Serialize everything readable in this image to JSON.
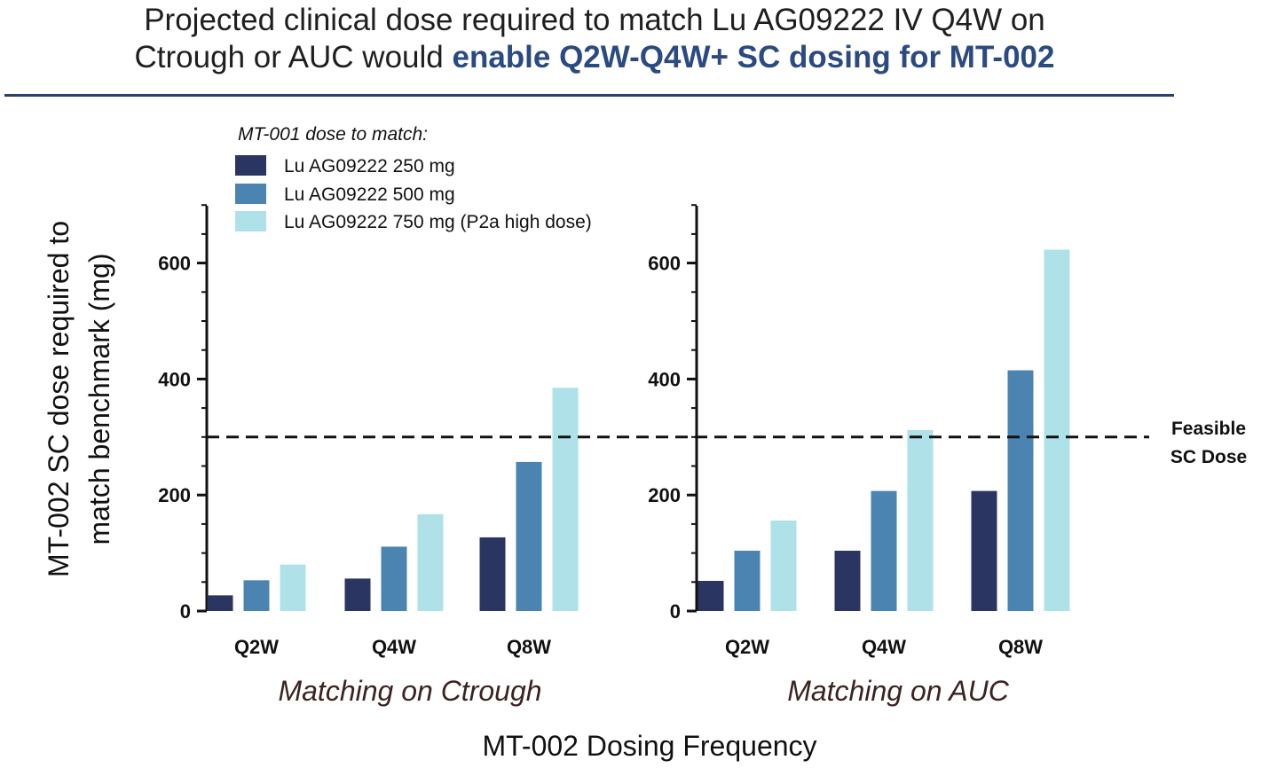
{
  "header": {
    "title_line1": "Projected clinical dose required to match Lu AG09222 IV Q4W on",
    "title_line2_plain": "Ctrough or AUC would ",
    "title_line2_highlight": "enable Q2W-Q4W+ SC dosing for MT-002"
  },
  "colors": {
    "dark": "#2b3561",
    "mid": "#4b84b0",
    "light": "#aee2e8",
    "title_highlight": "#2b4a82",
    "subtitle": "#3a2320"
  },
  "chart_data": {
    "type": "bar",
    "ylabel_line1": "MT-002 SC dose required to",
    "ylabel_line2": "match benchmark (mg)",
    "xlabel": "MT-002 Dosing Frequency",
    "legend_title": "MT-001 dose to match:",
    "legend_placement": "top-left",
    "yticks": [
      "0",
      "200",
      "400",
      "600"
    ],
    "ylim": [
      0,
      700
    ],
    "reference_line": {
      "value": 300,
      "label_line1": "Feasible",
      "label_line2": "SC Dose"
    },
    "categories": [
      "Q2W",
      "Q4W",
      "Q8W"
    ],
    "series_names": [
      "Lu AG09222 250 mg",
      "Lu AG09222 500 mg",
      "Lu AG09222 750 mg (P2a high dose)"
    ],
    "panels": [
      {
        "subtitle": "Matching on Ctrough",
        "series": [
          {
            "name": "Lu AG09222 250 mg",
            "values": [
              27,
              56,
              127
            ]
          },
          {
            "name": "Lu AG09222 500 mg",
            "values": [
              53,
              111,
              257
            ]
          },
          {
            "name": "Lu AG09222 750 mg (P2a high dose)",
            "values": [
              80,
              167,
              385
            ]
          }
        ]
      },
      {
        "subtitle": "Matching on AUC",
        "series": [
          {
            "name": "Lu AG09222 250 mg",
            "values": [
              52,
              104,
              207
            ]
          },
          {
            "name": "Lu AG09222 500 mg",
            "values": [
              104,
              207,
              415
            ]
          },
          {
            "name": "Lu AG09222 750 mg (P2a high dose)",
            "values": [
              156,
              312,
              623
            ]
          }
        ]
      }
    ]
  }
}
